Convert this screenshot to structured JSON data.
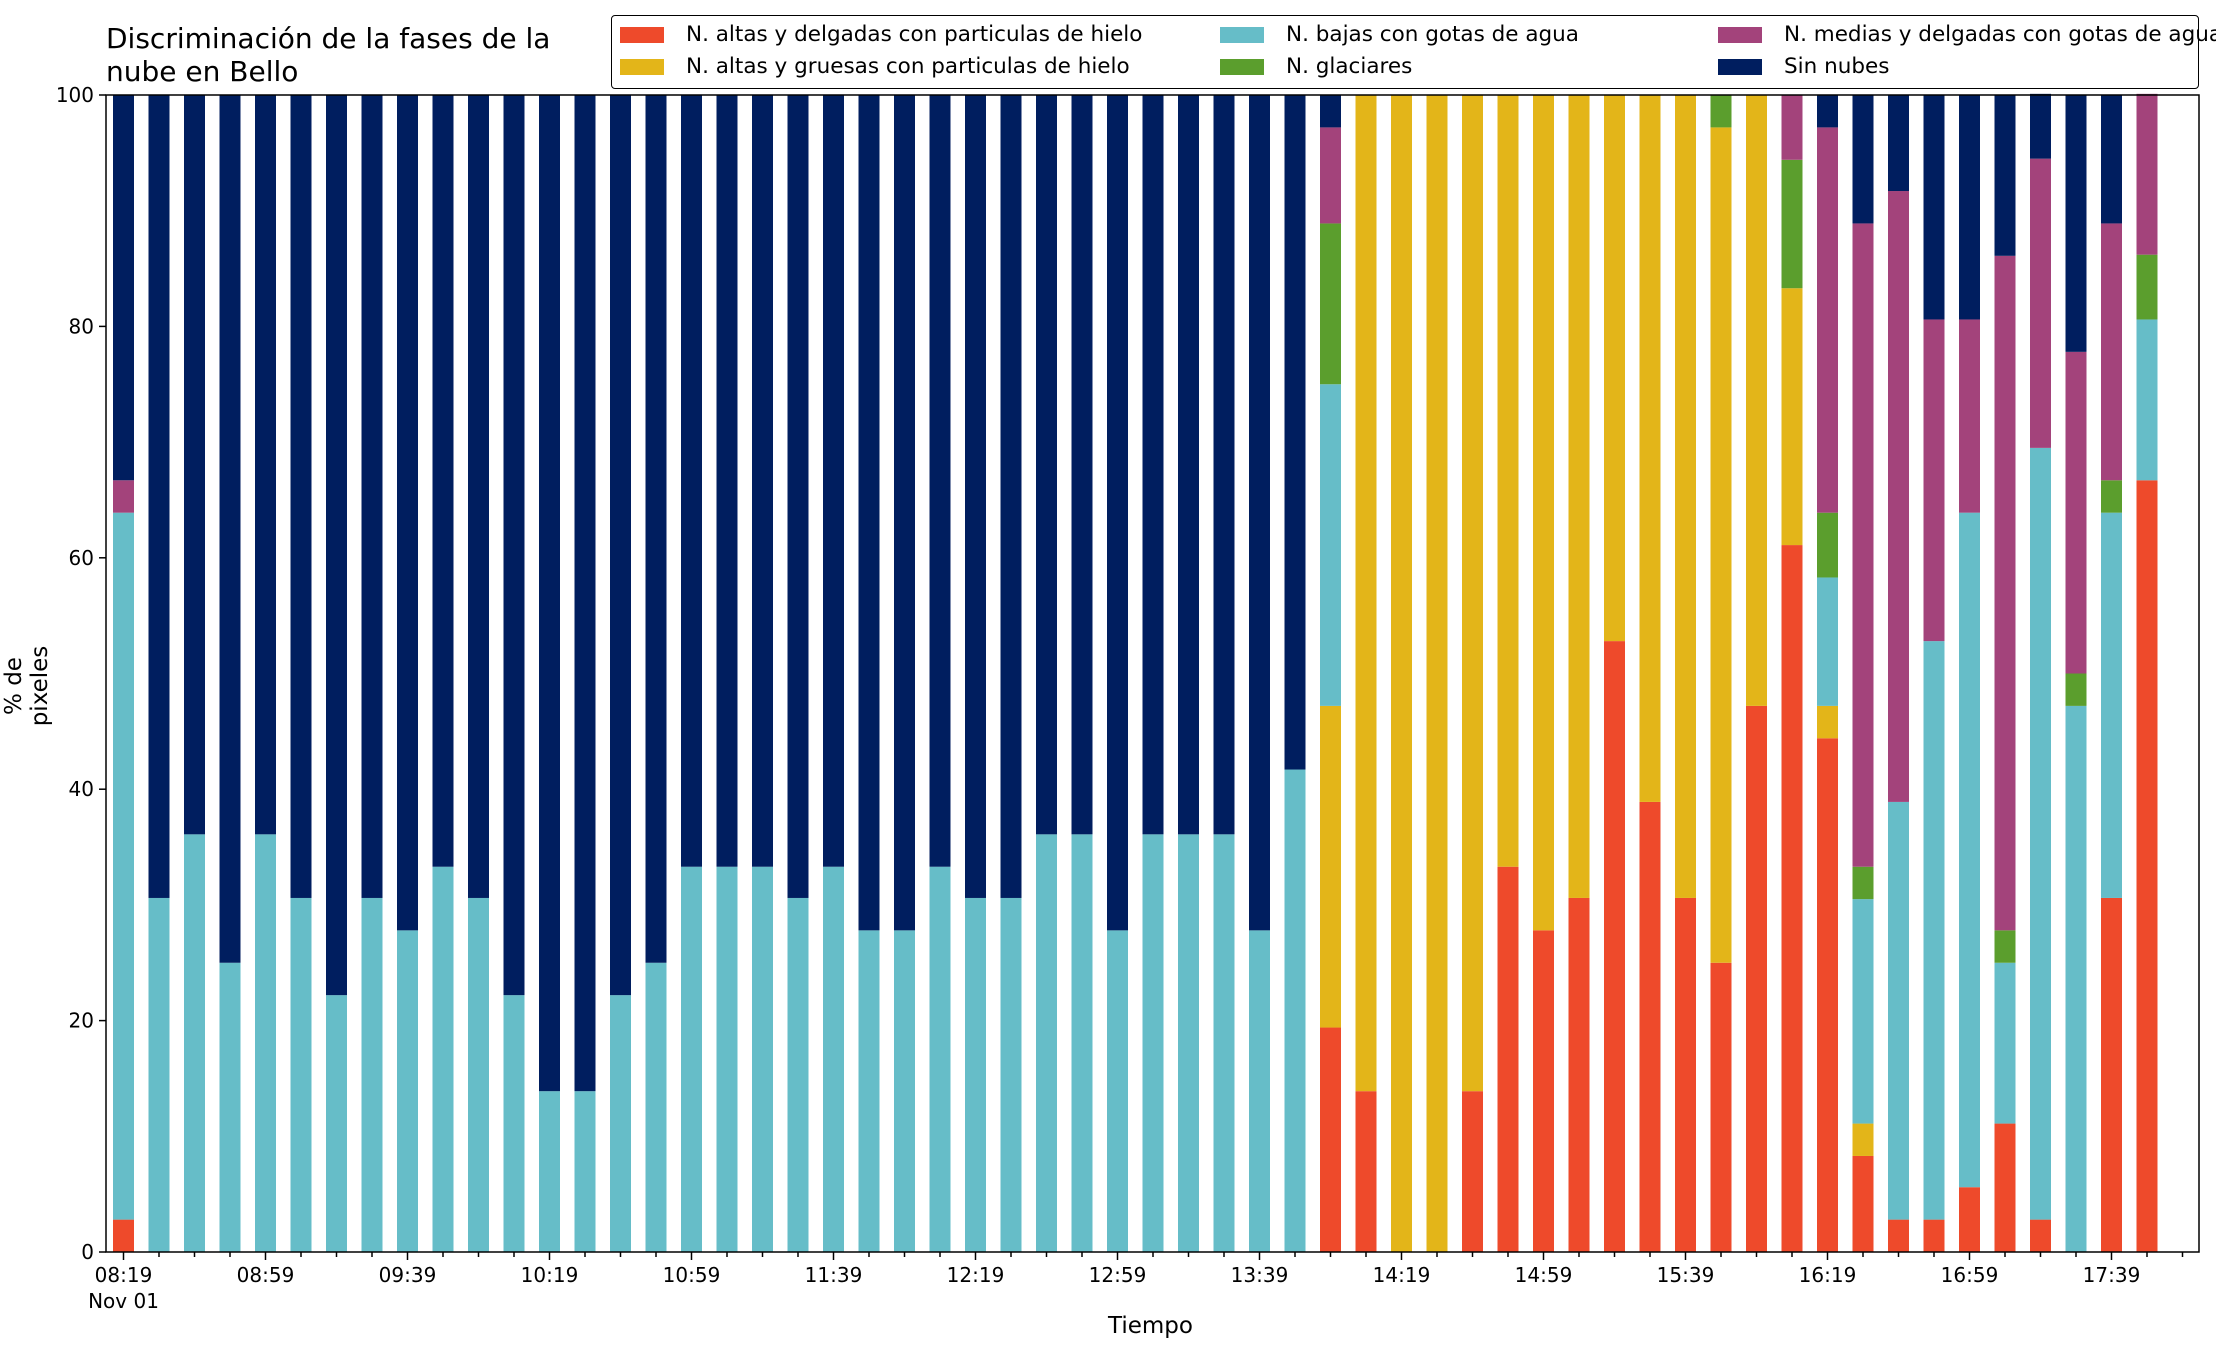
{
  "chart_data": {
    "type": "bar",
    "stacked": true,
    "title": "Discriminación de la fases de la nube en Bello",
    "title_lines": [
      "Discriminación de la fases de la",
      "nube en Bello"
    ],
    "xlabel": "Tiempo",
    "ylabel": "% de pixeles",
    "ylim": [
      0,
      100
    ],
    "yticks": [
      0,
      20,
      40,
      60,
      80,
      100
    ],
    "x_start_time": "08:19",
    "x_step_minutes": 10,
    "x_tick_labels": [
      "08:19",
      "08:59",
      "09:39",
      "10:19",
      "10:59",
      "11:39",
      "12:19",
      "12:59",
      "13:39",
      "14:19",
      "14:59",
      "15:39",
      "16:19",
      "16:59",
      "17:39"
    ],
    "x_date_label": "Nov 01",
    "grid": false,
    "legend_position": "top-right",
    "categories": [
      "08:19",
      "08:29",
      "08:39",
      "08:49",
      "08:59",
      "09:09",
      "09:19",
      "09:29",
      "09:39",
      "09:49",
      "09:59",
      "10:09",
      "10:19",
      "10:29",
      "10:39",
      "10:49",
      "10:59",
      "11:09",
      "11:19",
      "11:29",
      "11:39",
      "11:49",
      "11:59",
      "12:09",
      "12:19",
      "12:29",
      "12:39",
      "12:49",
      "12:59",
      "13:09",
      "13:19",
      "13:29",
      "13:39",
      "13:49",
      "13:59",
      "14:09",
      "14:19",
      "14:29",
      "14:39",
      "14:49",
      "14:59",
      "15:09",
      "15:19",
      "15:29",
      "15:39",
      "15:49",
      "15:59",
      "16:09",
      "16:19",
      "16:29",
      "16:39",
      "16:49",
      "16:59",
      "17:09",
      "17:19",
      "17:29",
      "17:39",
      "17:49"
    ],
    "series": [
      {
        "name": "N. altas y delgadas con particulas de hielo",
        "color": "#ee4a2b",
        "values": [
          2.8,
          0,
          0,
          0,
          0,
          0,
          0,
          0,
          0,
          0,
          0,
          0,
          0,
          0,
          0,
          0,
          0,
          0,
          0,
          0,
          0,
          0,
          0,
          0,
          0,
          0,
          0,
          0,
          0,
          0,
          0,
          0,
          0,
          0,
          19.4,
          13.9,
          0,
          0,
          13.9,
          33.3,
          27.8,
          30.6,
          52.8,
          38.9,
          30.6,
          25.0,
          47.2,
          61.1,
          44.4,
          8.3,
          2.8,
          2.8,
          5.6,
          11.1,
          2.8,
          0,
          30.6,
          66.7
        ]
      },
      {
        "name": "N. altas y gruesas con particulas de hielo",
        "color": "#e3b519",
        "values": [
          0,
          0,
          0,
          0,
          0,
          0,
          0,
          0,
          0,
          0,
          0,
          0,
          0,
          0,
          0,
          0,
          0,
          0,
          0,
          0,
          0,
          0,
          0,
          0,
          0,
          0,
          0,
          0,
          0,
          0,
          0,
          0,
          0,
          0,
          27.8,
          86.1,
          100,
          100,
          86.1,
          66.7,
          72.2,
          69.4,
          47.2,
          61.1,
          69.4,
          72.2,
          52.8,
          22.2,
          2.8,
          2.8,
          0,
          0,
          0,
          0,
          0,
          0,
          0,
          0
        ]
      },
      {
        "name": "N. bajas con gotas de agua",
        "color": "#66bdc8",
        "values": [
          61.1,
          30.6,
          36.1,
          25.0,
          36.1,
          30.6,
          22.2,
          30.6,
          27.8,
          33.3,
          30.6,
          22.2,
          13.9,
          13.9,
          22.2,
          25.0,
          33.3,
          33.3,
          33.3,
          30.6,
          33.3,
          27.8,
          27.8,
          33.3,
          30.6,
          30.6,
          36.1,
          36.1,
          27.8,
          36.1,
          36.1,
          36.1,
          27.8,
          41.7,
          27.8,
          0,
          0,
          0,
          0,
          0,
          0,
          0,
          0,
          0,
          0,
          0,
          0,
          0,
          11.1,
          19.4,
          36.1,
          50.0,
          58.3,
          13.9,
          66.7,
          47.2,
          33.3,
          13.9
        ]
      },
      {
        "name": "N. glaciares",
        "color": "#5b9e2d",
        "values": [
          0,
          0,
          0,
          0,
          0,
          0,
          0,
          0,
          0,
          0,
          0,
          0,
          0,
          0,
          0,
          0,
          0,
          0,
          0,
          0,
          0,
          0,
          0,
          0,
          0,
          0,
          0,
          0,
          0,
          0,
          0,
          0,
          0,
          0,
          13.9,
          0,
          0,
          0,
          0,
          0,
          0,
          0,
          0,
          0,
          0,
          2.8,
          0,
          11.1,
          5.6,
          2.8,
          0,
          0,
          0,
          2.8,
          0,
          2.8,
          2.8,
          5.6
        ]
      },
      {
        "name": "N. medias y delgadas con gotas de agua",
        "color": "#a3437b",
        "values": [
          2.8,
          0,
          0,
          0,
          0,
          0,
          0,
          0,
          0,
          0,
          0,
          0,
          0,
          0,
          0,
          0,
          0,
          0,
          0,
          0,
          0,
          0,
          0,
          0,
          0,
          0,
          0,
          0,
          0,
          0,
          0,
          0,
          0,
          0,
          8.3,
          0,
          0,
          0,
          0,
          0,
          0,
          0,
          0,
          0,
          0,
          0,
          0,
          5.6,
          33.3,
          55.6,
          52.8,
          27.8,
          16.7,
          58.3,
          25.0,
          27.8,
          22.2,
          13.9
        ]
      },
      {
        "name": "Sin nubes",
        "color": "#001e5f",
        "values": [
          33.3,
          69.4,
          63.9,
          75.0,
          63.9,
          69.4,
          77.8,
          69.4,
          72.2,
          66.7,
          69.4,
          77.8,
          86.1,
          86.1,
          77.8,
          75.0,
          66.7,
          66.7,
          66.7,
          69.4,
          66.7,
          72.2,
          72.2,
          66.7,
          69.4,
          69.4,
          63.9,
          63.9,
          72.2,
          63.9,
          63.9,
          63.9,
          72.2,
          58.3,
          2.8,
          0,
          0,
          0,
          0,
          0,
          0,
          0,
          0,
          0,
          0,
          0,
          0,
          0,
          2.8,
          11.1,
          8.3,
          19.4,
          19.4,
          13.9,
          5.6,
          22.2,
          11.1,
          0
        ]
      }
    ]
  }
}
